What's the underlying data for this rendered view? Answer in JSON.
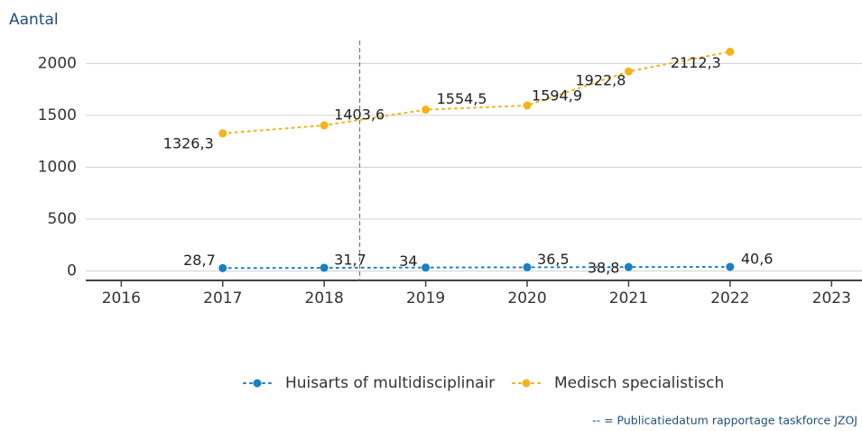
{
  "chart_data": {
    "type": "line",
    "y_label": "Aantal",
    "x": [
      2017,
      2018,
      2019,
      2020,
      2021,
      2022
    ],
    "series": [
      {
        "name": "Huisarts of multidisciplinair",
        "color": "#1a7fc4",
        "values": [
          28.7,
          31.7,
          34,
          36.5,
          38.8,
          40.6
        ],
        "value_labels": [
          "28,7",
          "31,7",
          "34",
          "36,5",
          "38,8",
          "40,6"
        ]
      },
      {
        "name": "Medisch specialistisch",
        "color": "#f5b21a",
        "values": [
          1326.3,
          1403.6,
          1554.5,
          1594.9,
          1922.8,
          2112.3
        ],
        "value_labels": [
          "1326,3",
          "1403,6",
          "1554,5",
          "1594,9",
          "1922,8",
          "2112,3"
        ]
      }
    ],
    "xlim": [
      2015.65,
      2023.3
    ],
    "xticks": [
      2016,
      2017,
      2018,
      2019,
      2020,
      2021,
      2022,
      2023
    ],
    "ylim": [
      -90,
      2220
    ],
    "yticks": [
      0,
      500,
      1000,
      1500,
      2000
    ],
    "grid": true,
    "legend": "bottom",
    "reference_line_x": 2018.35,
    "annotation": "-- = Publicatiedatum rapportage taskforce JZOJ"
  }
}
